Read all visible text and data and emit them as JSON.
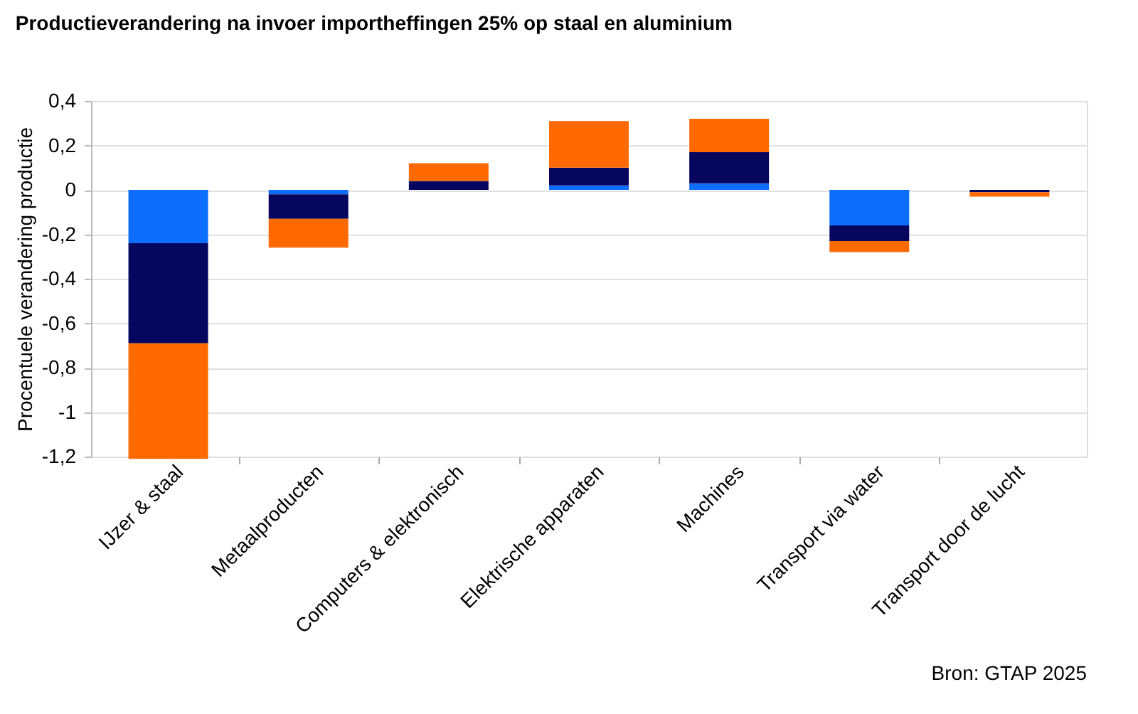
{
  "chart_data": {
    "type": "bar",
    "title": "Productieverandering na invoer importheffingen 25% op staal en aluminium",
    "ylabel": "Procentuele verandering productie",
    "categories": [
      "IJzer & staal",
      "Metaalproducten",
      "Computers & elektronisch",
      "Elektrische apparaten",
      "Machines",
      "Transport via water",
      "Transport door de lucht"
    ],
    "stacked": true,
    "series": [
      {
        "color": "#0d6efd",
        "values": [
          -0.24,
          -0.02,
          null,
          0.02,
          0.03,
          -0.16,
          null
        ]
      },
      {
        "color": "#06065e",
        "values": [
          -0.45,
          -0.11,
          0.04,
          0.08,
          0.14,
          -0.07,
          -0.01
        ]
      },
      {
        "color": "#ff6a00",
        "values": [
          -0.52,
          -0.13,
          0.08,
          0.21,
          0.15,
          -0.05,
          -0.02
        ]
      }
    ],
    "ylim": [
      -1.2,
      0.4
    ],
    "yticks": [
      {
        "value": -1.2,
        "label": "-1,2"
      },
      -1,
      {
        "value": -0.8,
        "label": "-0,8"
      },
      {
        "value": -0.6,
        "label": "-0,6"
      },
      {
        "value": -0.4,
        "label": "-0,4"
      },
      {
        "value": -0.2,
        "label": "-0,2"
      },
      0,
      {
        "value": 0.2,
        "label": "0,2"
      },
      {
        "value": 0.4,
        "label": "0,4"
      }
    ],
    "grid": "y",
    "legend": false,
    "annotations": [
      "Bron: GTAP 2025"
    ]
  }
}
